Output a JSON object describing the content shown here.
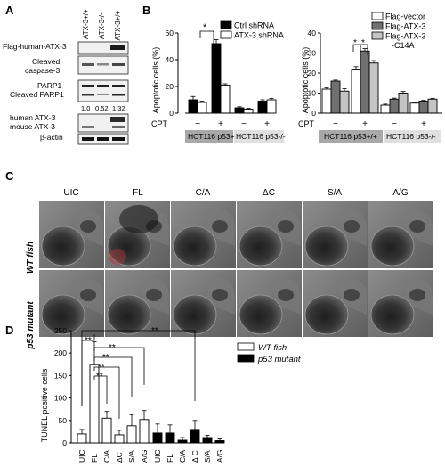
{
  "panels": {
    "A": {
      "letter": "A",
      "lanes": [
        "ATX-3+/+",
        "ATX-3-/-",
        "+ ATX-3+/+"
      ],
      "blot_labels": [
        "Flag-human-ATX-3",
        "Cleaved caspase-3",
        "PARP1",
        "Cleaved PARP1",
        "human ATX-3",
        "mouse ATX-3",
        "β-actin"
      ],
      "cleaved_caspase_label_line1": "Cleaved",
      "cleaved_caspase_label_line2": "caspase-3",
      "quant": [
        "1.0",
        "0.52",
        "1.32"
      ]
    },
    "B": {
      "letter": "B",
      "cpt_label": "CPT",
      "cpt_signs": [
        "−",
        "+",
        "−",
        "+"
      ],
      "cell_lines": [
        "HCT116 p53+/+",
        "HCT116 p53-/-"
      ],
      "star": "*"
    },
    "C": {
      "letter": "C",
      "columns": [
        "UIC",
        "FL",
        "C/A",
        "ΔC",
        "S/A",
        "A/G"
      ],
      "rows": [
        "WT fish",
        "p53 mutant"
      ]
    },
    "D": {
      "letter": "D",
      "star": "**"
    }
  },
  "chart_data": [
    {
      "type": "bar",
      "title": "",
      "xlabel": "",
      "ylabel": "Apoptotic cells (%)",
      "ylim": [
        0,
        60
      ],
      "yticks": [
        "0",
        "20",
        "40",
        "60"
      ],
      "categories": [
        "p53+/+ CPT−",
        "p53+/+ CPT+",
        "p53-/- CPT−",
        "p53-/- CPT+"
      ],
      "series": [
        {
          "name": "Ctrl shRNA",
          "color": "#000000",
          "values": [
            10,
            52,
            4,
            9
          ]
        },
        {
          "name": "ATX-3 shRNA",
          "color": "#ffffff",
          "values": [
            8,
            21,
            3,
            10
          ]
        }
      ],
      "errors": [
        [
          2.5,
          3,
          0.8,
          1
        ],
        [
          1,
          1,
          0.6,
          1
        ]
      ]
    },
    {
      "type": "bar",
      "title": "",
      "xlabel": "",
      "ylabel": "Apoptotic cells (%)",
      "ylim": [
        0,
        40
      ],
      "yticks": [
        "0",
        "10",
        "20",
        "30",
        "40"
      ],
      "categories": [
        "p53+/+ CPT−",
        "p53+/+ CPT+",
        "p53-/- CPT−",
        "p53-/- CPT+"
      ],
      "series": [
        {
          "name": "Flag-vector",
          "color": "#ffffff",
          "values": [
            12,
            22,
            4,
            5
          ]
        },
        {
          "name": "Flag-ATX-3",
          "color": "#707070",
          "values": [
            16,
            31,
            7,
            6
          ]
        },
        {
          "name": "Flag-ATX-3 -C14A",
          "color": "#c4c4c4",
          "values": [
            11,
            25,
            10,
            7
          ]
        }
      ],
      "errors": [
        [
          0.6,
          1.2,
          0.5,
          0.4
        ],
        [
          0.5,
          1.2,
          0.5,
          0.4
        ],
        [
          1.2,
          1.2,
          0.8,
          0.4
        ]
      ]
    },
    {
      "type": "bar",
      "title": "",
      "xlabel": "",
      "ylabel": "TUNEL positive cells",
      "ylim": [
        0,
        250
      ],
      "yticks": [
        "0",
        "50",
        "100",
        "150",
        "200",
        "250"
      ],
      "categories_wt": [
        "UIC",
        "FL",
        "C/A",
        "ΔC",
        "S/A",
        "A/G"
      ],
      "categories_p53": [
        "UIC",
        "FL",
        "C/A",
        "Δ C",
        "S/A",
        "A/G"
      ],
      "series": [
        {
          "name": "WT fish",
          "color": "#ffffff",
          "values": [
            20,
            175,
            55,
            18,
            38,
            52
          ],
          "errors": [
            10,
            50,
            15,
            10,
            25,
            20
          ]
        },
        {
          "name": "p53 mutant",
          "color": "#000000",
          "values": [
            22,
            22,
            6,
            30,
            12,
            5
          ],
          "errors": [
            20,
            18,
            6,
            20,
            5,
            4
          ]
        }
      ]
    }
  ]
}
